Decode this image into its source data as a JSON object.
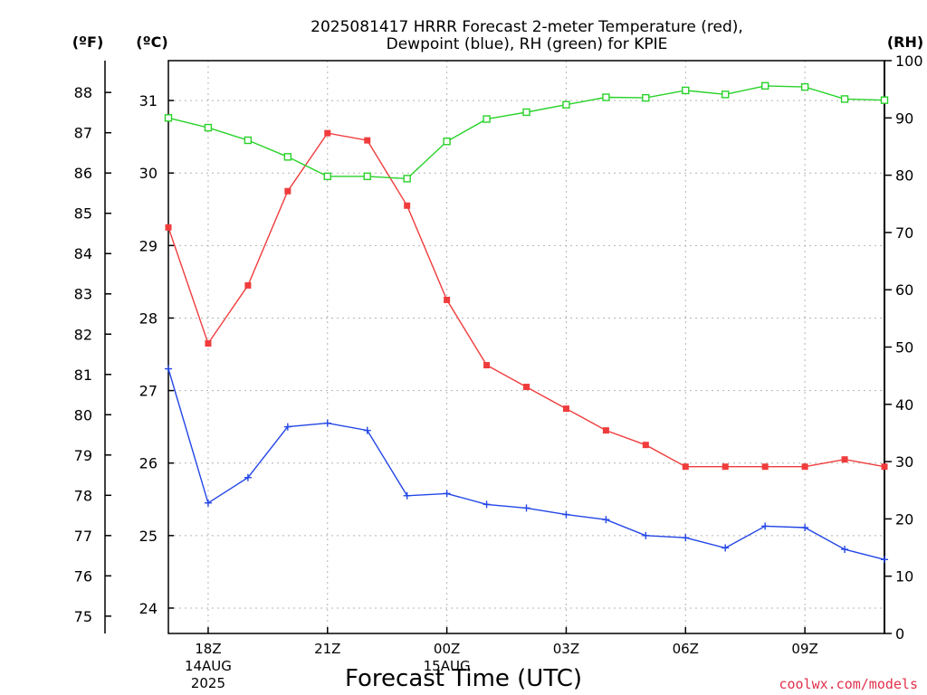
{
  "chart_data": {
    "type": "line",
    "title_lines": [
      "2025081417 HRRR Forecast 2-meter Temperature (red),",
      "Dewpoint (blue), RH (green) for KPIE"
    ],
    "xlabel": "Forecast Time (UTC)",
    "credit": "coolwx.com/models",
    "x_hours": [
      17,
      18,
      19,
      20,
      21,
      22,
      23,
      24,
      25,
      26,
      27,
      28,
      29,
      30,
      31,
      32,
      33,
      34,
      35
    ],
    "x_ticks": [
      {
        "hour": 18,
        "lines": [
          "18Z",
          "14AUG",
          "2025"
        ]
      },
      {
        "hour": 21,
        "lines": [
          "21Z"
        ]
      },
      {
        "hour": 24,
        "lines": [
          "00Z",
          "15AUG"
        ]
      },
      {
        "hour": 27,
        "lines": [
          "03Z"
        ]
      },
      {
        "hour": 30,
        "lines": [
          "06Z"
        ]
      },
      {
        "hour": 33,
        "lines": [
          "09Z"
        ]
      }
    ],
    "xlim": [
      17,
      35
    ],
    "celsius_axis": {
      "unit": "(ºC)",
      "ylim": [
        23.65,
        31.55
      ],
      "ticks": [
        24,
        25,
        26,
        27,
        28,
        29,
        30,
        31
      ]
    },
    "fahrenheit_axis": {
      "unit": "(ºF)",
      "ticks": [
        75,
        76,
        77,
        78,
        79,
        80,
        81,
        82,
        83,
        84,
        85,
        86,
        87,
        88
      ]
    },
    "rh_axis": {
      "unit": "(RH)",
      "ylim": [
        0,
        100
      ],
      "ticks": [
        0,
        10,
        20,
        30,
        40,
        50,
        60,
        70,
        80,
        90,
        100
      ]
    },
    "grid": true,
    "series": [
      {
        "name": "Temperature",
        "axis": "celsius",
        "color": "#f03c3c",
        "marker": "filled-square",
        "values": [
          29.25,
          27.65,
          28.45,
          29.75,
          30.55,
          30.45,
          29.55,
          28.25,
          27.35,
          27.05,
          26.75,
          26.45,
          26.25,
          25.95,
          25.95,
          25.95,
          25.95,
          26.05,
          25.95
        ]
      },
      {
        "name": "Dewpoint",
        "axis": "celsius",
        "color": "#2346e6",
        "marker": "plus",
        "values": [
          27.3,
          25.45,
          25.8,
          26.5,
          26.55,
          26.45,
          25.55,
          25.58,
          25.43,
          25.38,
          25.29,
          25.22,
          25.0,
          24.97,
          24.83,
          25.13,
          25.11,
          24.81,
          24.67
        ]
      },
      {
        "name": "RH",
        "axis": "rh",
        "color": "#28d228",
        "marker": "open-square",
        "values": [
          90.0,
          88.3,
          86.1,
          83.2,
          79.8,
          79.8,
          79.4,
          85.9,
          89.8,
          91.0,
          92.3,
          93.6,
          93.5,
          94.8,
          94.1,
          95.6,
          95.4,
          93.3,
          93.1
        ]
      }
    ]
  }
}
